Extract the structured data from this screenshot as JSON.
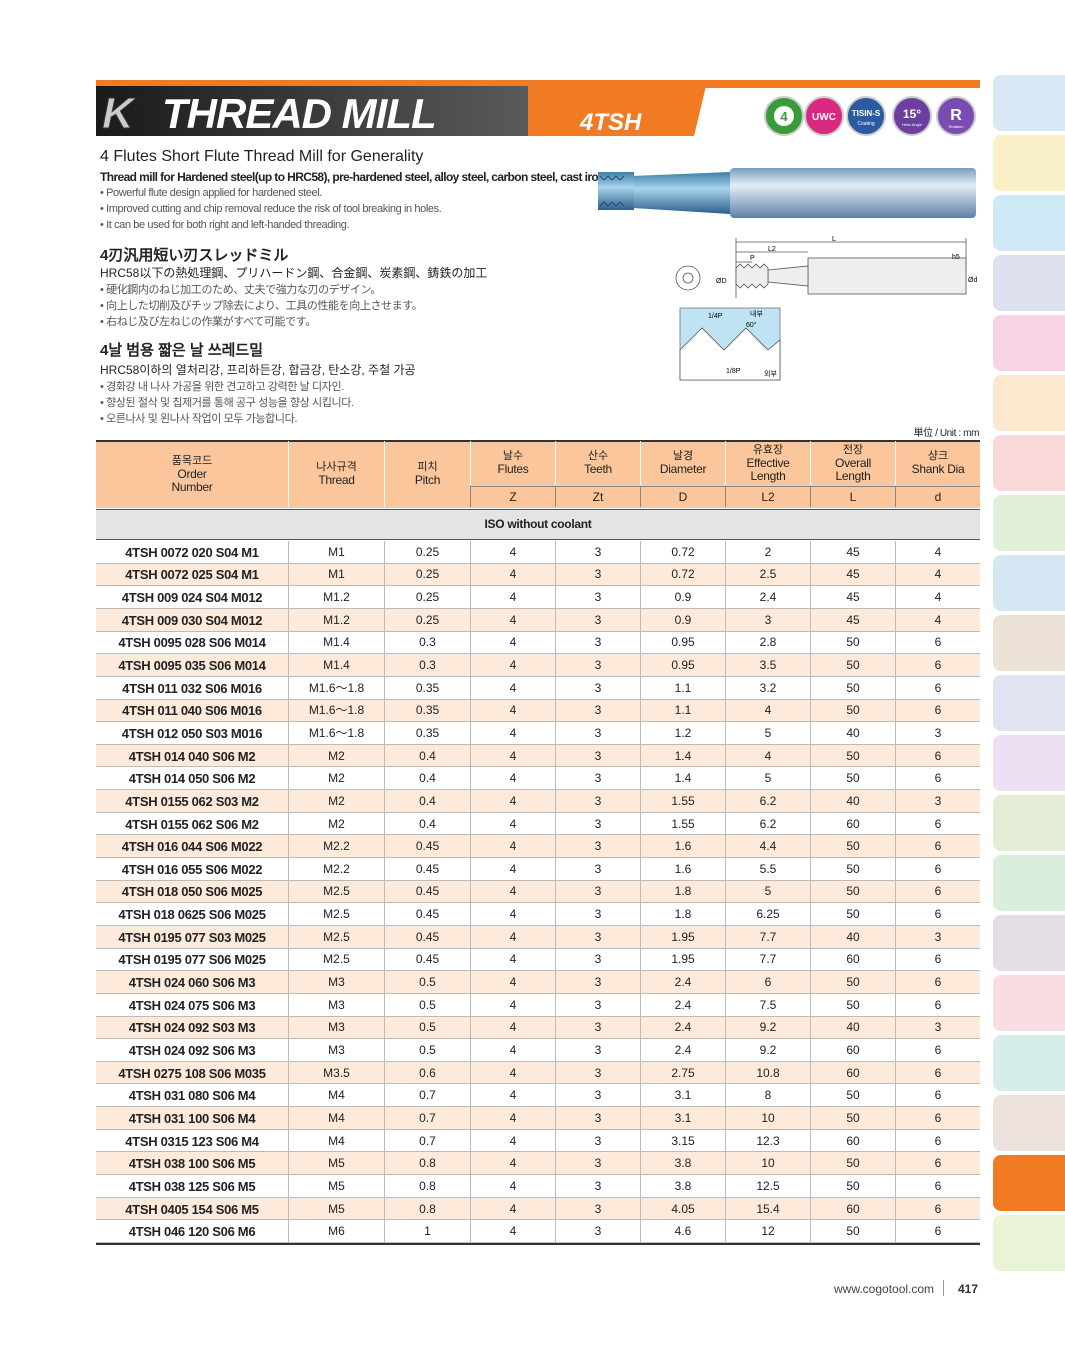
{
  "header": {
    "k": "K",
    "title": "THREAD MILL",
    "code": "4TSH",
    "badges": {
      "flutes": "4",
      "uwc": "UWC",
      "coating": "TISIN-S",
      "coating_note": "Coating",
      "helix": "15°",
      "helix_note": "Helix Angle",
      "rotation": "R",
      "rotation_note": "Rotation"
    }
  },
  "english": {
    "title": "4 Flutes Short Flute Thread Mill for Generality",
    "subtitle": "Thread mill for Hardened steel(up to HRC58), pre-hardened steel, alloy steel, carbon steel, cast iron.",
    "bullets": [
      "• Powerful flute design applied for hardened steel.",
      "• Improved cutting and chip removal reduce the risk of tool breaking in holes.",
      "• It can be used for both right and left-handed threading."
    ]
  },
  "japanese": {
    "title": "4刃汎用短い刃スレッドミル",
    "subtitle": "HRC58以下の熱処理鋼、プリハードン鋼、合金鋼、炭素鋼、鋳鉄の加工",
    "bullets": [
      "• 硬化鋼内のねじ加工のため、丈夫で強力な刃のデザイン。",
      "• 向上した切削及びチップ除去により、工具の性能を向上させます。",
      "• 右ねじ及び左ねじの作業がすべて可能です。"
    ]
  },
  "korean": {
    "title": "4날 범용 짧은 날 쓰레드밀",
    "subtitle": "HRC58이하의 열처리강, 프리하든강, 합금강, 탄소강, 주철 가공",
    "bullets": [
      "• 경화강 내 나사 가공을 위한 견고하고 강력한 날 디자인.",
      "• 향상된 절삭 및 칩제거를 통해 공구 성능을 향상 시킵니다.",
      "• 오른나사 및 왼나사 작업이 모두 가능합니다."
    ]
  },
  "diagram": {
    "L": "L",
    "L2": "L2",
    "P": "P",
    "h5": "h5",
    "D": "ØD",
    "d": "Ød",
    "quarter": "1/4P",
    "inner": "내부",
    "angle": "60°",
    "eighth": "1/8P",
    "outer": "외부"
  },
  "unit": "単位 / Unit : mm",
  "table": {
    "columns": [
      {
        "ko": "품목코드",
        "en": "Order Number"
      },
      {
        "ko": "나사규격",
        "en": "Thread"
      },
      {
        "ko": "피치",
        "en": "Pitch"
      },
      {
        "ko": "날수",
        "en": "Flutes",
        "sym": "Z"
      },
      {
        "ko": "산수",
        "en": "Teeth",
        "sym": "Zt"
      },
      {
        "ko": "날경",
        "en": "Diameter",
        "sym": "D"
      },
      {
        "ko": "유효장",
        "en": "Effective Length",
        "sym": "L2"
      },
      {
        "ko": "전장",
        "en": "Overall Length",
        "sym": "L"
      },
      {
        "ko": "샹크",
        "en": "Shank Dia",
        "sym": "d"
      }
    ],
    "section": "ISO without coolant",
    "rows": [
      [
        "4TSH 0072 020 S04 M1",
        "M1",
        "0.25",
        "4",
        "3",
        "0.72",
        "2",
        "45",
        "4"
      ],
      [
        "4TSH 0072 025 S04 M1",
        "M1",
        "0.25",
        "4",
        "3",
        "0.72",
        "2.5",
        "45",
        "4"
      ],
      [
        "4TSH 009 024 S04 M012",
        "M1.2",
        "0.25",
        "4",
        "3",
        "0.9",
        "2.4",
        "45",
        "4"
      ],
      [
        "4TSH 009 030 S04 M012",
        "M1.2",
        "0.25",
        "4",
        "3",
        "0.9",
        "3",
        "45",
        "4"
      ],
      [
        "4TSH 0095 028 S06 M014",
        "M1.4",
        "0.3",
        "4",
        "3",
        "0.95",
        "2.8",
        "50",
        "6"
      ],
      [
        "4TSH 0095 035 S06 M014",
        "M1.4",
        "0.3",
        "4",
        "3",
        "0.95",
        "3.5",
        "50",
        "6"
      ],
      [
        "4TSH 011 032 S06 M016",
        "M1.6～1.8",
        "0.35",
        "4",
        "3",
        "1.1",
        "3.2",
        "50",
        "6"
      ],
      [
        "4TSH 011 040 S06 M016",
        "M1.6～1.8",
        "0.35",
        "4",
        "3",
        "1.1",
        "4",
        "50",
        "6"
      ],
      [
        "4TSH 012 050 S03 M016",
        "M1.6～1.8",
        "0.35",
        "4",
        "3",
        "1.2",
        "5",
        "40",
        "3"
      ],
      [
        "4TSH 014 040 S06 M2",
        "M2",
        "0.4",
        "4",
        "3",
        "1.4",
        "4",
        "50",
        "6"
      ],
      [
        "4TSH 014 050 S06 M2",
        "M2",
        "0.4",
        "4",
        "3",
        "1.4",
        "5",
        "50",
        "6"
      ],
      [
        "4TSH 0155 062 S03 M2",
        "M2",
        "0.4",
        "4",
        "3",
        "1.55",
        "6.2",
        "40",
        "3"
      ],
      [
        "4TSH 0155 062 S06 M2",
        "M2",
        "0.4",
        "4",
        "3",
        "1.55",
        "6.2",
        "60",
        "6"
      ],
      [
        "4TSH 016 044 S06 M022",
        "M2.2",
        "0.45",
        "4",
        "3",
        "1.6",
        "4.4",
        "50",
        "6"
      ],
      [
        "4TSH 016 055 S06 M022",
        "M2.2",
        "0.45",
        "4",
        "3",
        "1.6",
        "5.5",
        "50",
        "6"
      ],
      [
        "4TSH 018 050 S06 M025",
        "M2.5",
        "0.45",
        "4",
        "3",
        "1.8",
        "5",
        "50",
        "6"
      ],
      [
        "4TSH 018 0625 S06 M025",
        "M2.5",
        "0.45",
        "4",
        "3",
        "1.8",
        "6.25",
        "50",
        "6"
      ],
      [
        "4TSH 0195 077 S03 M025",
        "M2.5",
        "0.45",
        "4",
        "3",
        "1.95",
        "7.7",
        "40",
        "3"
      ],
      [
        "4TSH 0195 077 S06 M025",
        "M2.5",
        "0.45",
        "4",
        "3",
        "1.95",
        "7.7",
        "60",
        "6"
      ],
      [
        "4TSH 024 060 S06 M3",
        "M3",
        "0.5",
        "4",
        "3",
        "2.4",
        "6",
        "50",
        "6"
      ],
      [
        "4TSH 024 075 S06 M3",
        "M3",
        "0.5",
        "4",
        "3",
        "2.4",
        "7.5",
        "50",
        "6"
      ],
      [
        "4TSH 024 092 S03 M3",
        "M3",
        "0.5",
        "4",
        "3",
        "2.4",
        "9.2",
        "40",
        "3"
      ],
      [
        "4TSH 024 092 S06 M3",
        "M3",
        "0.5",
        "4",
        "3",
        "2.4",
        "9.2",
        "60",
        "6"
      ],
      [
        "4TSH 0275 108 S06 M035",
        "M3.5",
        "0.6",
        "4",
        "3",
        "2.75",
        "10.8",
        "60",
        "6"
      ],
      [
        "4TSH 031 080 S06 M4",
        "M4",
        "0.7",
        "4",
        "3",
        "3.1",
        "8",
        "50",
        "6"
      ],
      [
        "4TSH 031 100 S06 M4",
        "M4",
        "0.7",
        "4",
        "3",
        "3.1",
        "10",
        "50",
        "6"
      ],
      [
        "4TSH 0315 123 S06 M4",
        "M4",
        "0.7",
        "4",
        "3",
        "3.15",
        "12.3",
        "60",
        "6"
      ],
      [
        "4TSH 038 100 S06 M5",
        "M5",
        "0.8",
        "4",
        "3",
        "3.8",
        "10",
        "50",
        "6"
      ],
      [
        "4TSH 038 125 S06 M5",
        "M5",
        "0.8",
        "4",
        "3",
        "3.8",
        "12.5",
        "50",
        "6"
      ],
      [
        "4TSH 0405 154 S06 M5",
        "M5",
        "0.8",
        "4",
        "3",
        "4.05",
        "15.4",
        "60",
        "6"
      ],
      [
        "4TSH 046 120 S06 M6",
        "M6",
        "1",
        "4",
        "3",
        "4.6",
        "12",
        "50",
        "6"
      ]
    ]
  },
  "footer": {
    "url": "www.cogotool.com",
    "page": "417"
  }
}
